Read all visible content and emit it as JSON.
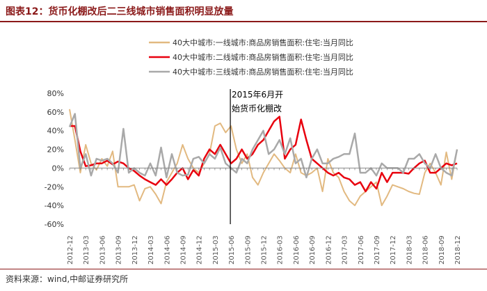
{
  "title": "图表12：货币化棚改后二三线城市销售面积明显放量",
  "source": "资料来源：wind,中邮证券研究所",
  "annotation": [
    "2015年6月开",
    "始货币化棚改"
  ],
  "chart_data": {
    "type": "line",
    "x": [
      "2012-12",
      "2013-01",
      "2013-02",
      "2013-03",
      "2013-04",
      "2013-05",
      "2013-06",
      "2013-07",
      "2013-08",
      "2013-09",
      "2013-10",
      "2013-11",
      "2013-12",
      "2014-01",
      "2014-02",
      "2014-03",
      "2014-04",
      "2014-05",
      "2014-06",
      "2014-07",
      "2014-08",
      "2014-09",
      "2014-10",
      "2014-11",
      "2014-12",
      "2015-01",
      "2015-02",
      "2015-03",
      "2015-04",
      "2015-05",
      "2015-06",
      "2015-07",
      "2015-08",
      "2015-09",
      "2015-10",
      "2015-11",
      "2015-12",
      "2016-01",
      "2016-02",
      "2016-03",
      "2016-04",
      "2016-05",
      "2016-06",
      "2016-07",
      "2016-08",
      "2016-09",
      "2016-10",
      "2016-11",
      "2016-12",
      "2017-01",
      "2017-02",
      "2017-03",
      "2017-04",
      "2017-05",
      "2017-06",
      "2017-07",
      "2017-08",
      "2017-09",
      "2017-10",
      "2017-11",
      "2017-12",
      "2018-01",
      "2018-02",
      "2018-03",
      "2018-04",
      "2018-05",
      "2018-06",
      "2018-07",
      "2018-08",
      "2018-09",
      "2018-10",
      "2018-11",
      "2018-12"
    ],
    "xticks": [
      "2012-12",
      "2013-03",
      "2013-06",
      "2013-09",
      "2013-12",
      "2014-03",
      "2014-06",
      "2014-09",
      "2014-12",
      "2015-03",
      "2015-06",
      "2015-09",
      "2015-12",
      "2016-03",
      "2016-06",
      "2016-09",
      "2016-12",
      "2017-03",
      "2017-06",
      "2017-09",
      "2017-12",
      "2018-03",
      "2018-06",
      "2018-09",
      "2018-12"
    ],
    "ylim": [
      -60,
      80
    ],
    "yticks": [
      -60,
      -40,
      -20,
      0,
      20,
      40,
      60,
      80
    ],
    "ytick_labels": [
      "-60%",
      "-40%",
      "-20%",
      "0%",
      "20%",
      "40%",
      "60%",
      "80%"
    ],
    "vline_at": "2015-06",
    "legend_position": "top-center",
    "series": [
      {
        "name": "40大中城市:一线城市:商品房销售面积:住宅:当月同比",
        "color": "#e2b980",
        "width": 2,
        "values": [
          63,
          30,
          -5,
          25,
          5,
          -2,
          10,
          2,
          18,
          -20,
          -20,
          -20,
          -18,
          -35,
          -22,
          -20,
          -28,
          -38,
          -15,
          -5,
          5,
          25,
          10,
          0,
          -5,
          5,
          15,
          45,
          48,
          38,
          45,
          20,
          5,
          15,
          -10,
          -18,
          -5,
          5,
          15,
          8,
          0,
          -5,
          15,
          -5,
          -8,
          -5,
          0,
          -25,
          10,
          -5,
          -10,
          -25,
          -35,
          -40,
          -30,
          -25,
          -20,
          -15,
          -40,
          -30,
          -18,
          -20,
          -22,
          -25,
          -27,
          -28,
          -5,
          5,
          -5,
          -18,
          17,
          -12,
          20
        ]
      },
      {
        "name": "40大中城市:二线城市:商品房销售面积:住宅:当月同比",
        "color": "#e8000e",
        "width": 2.5,
        "values": [
          45,
          45,
          18,
          2,
          3,
          5,
          5,
          8,
          4,
          7,
          5,
          0,
          -3,
          -8,
          -12,
          -15,
          -18,
          -12,
          -18,
          -12,
          -5,
          0,
          -12,
          -2,
          -8,
          10,
          20,
          15,
          25,
          15,
          5,
          10,
          20,
          10,
          15,
          25,
          30,
          40,
          50,
          55,
          10,
          20,
          25,
          52,
          30,
          10,
          5,
          0,
          -5,
          -8,
          -5,
          -10,
          -12,
          -18,
          -15,
          -25,
          -15,
          -22,
          -5,
          -15,
          -5,
          -5,
          -5,
          -6,
          0,
          5,
          8,
          -5,
          -5,
          0,
          5,
          3,
          5
        ]
      },
      {
        "name": "40大中城市:三线城市:商品房销售面积:住宅:当月同比",
        "color": "#a9a9a9",
        "width": 2.5,
        "values": [
          44,
          58,
          0,
          15,
          -8,
          10,
          8,
          10,
          5,
          -5,
          42,
          -5,
          0,
          -5,
          -8,
          5,
          -8,
          22,
          -10,
          15,
          -5,
          -8,
          -7,
          10,
          12,
          5,
          15,
          10,
          22,
          5,
          0,
          -5,
          10,
          5,
          20,
          30,
          40,
          15,
          20,
          30,
          15,
          32,
          5,
          10,
          -10,
          10,
          20,
          5,
          5,
          10,
          12,
          15,
          15,
          37,
          -5,
          -5,
          0,
          -8,
          5,
          0,
          0,
          0,
          -5,
          10,
          10,
          15,
          5,
          0,
          15,
          0,
          -5,
          -8,
          20
        ]
      }
    ]
  }
}
